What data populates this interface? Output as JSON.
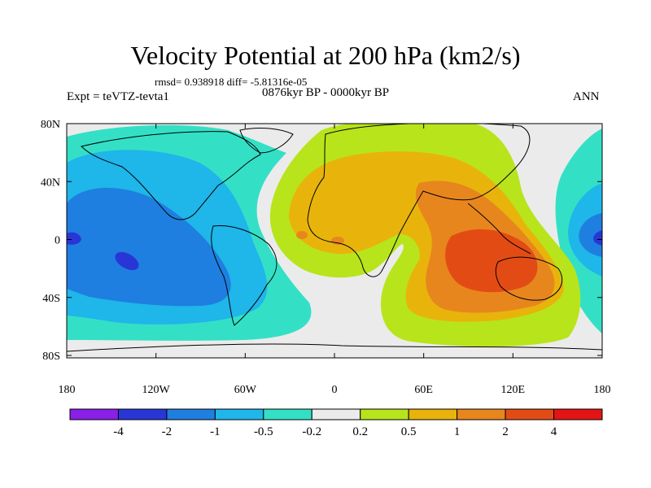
{
  "title": "Velocity Potential at 200 hPa (km2/s)",
  "stats": "rmsd= 0.938918  diff= -5.81316e-05",
  "experiment": "Expt = teVTZ-tevta1",
  "period": "0876kyr BP - 0000kyr BP",
  "season": "ANN",
  "axes": {
    "lon_ticks": [
      "180",
      "120W",
      "60W",
      "0",
      "60E",
      "120E",
      "180"
    ],
    "lat_ticks": [
      "80N",
      "40N",
      "0",
      "40S",
      "80S"
    ]
  },
  "colorbar": {
    "labels": [
      "-4",
      "-2",
      "-1",
      "-0.5",
      "-0.2",
      "0.2",
      "0.5",
      "1",
      "2",
      "4"
    ],
    "colors": [
      "#8a1fe6",
      "#2936d6",
      "#1e7fe0",
      "#1fb6ea",
      "#33e0c6",
      "#ebebeb",
      "#b8e41c",
      "#e8b40c",
      "#e8861e",
      "#e24c14",
      "#e41414"
    ]
  }
}
